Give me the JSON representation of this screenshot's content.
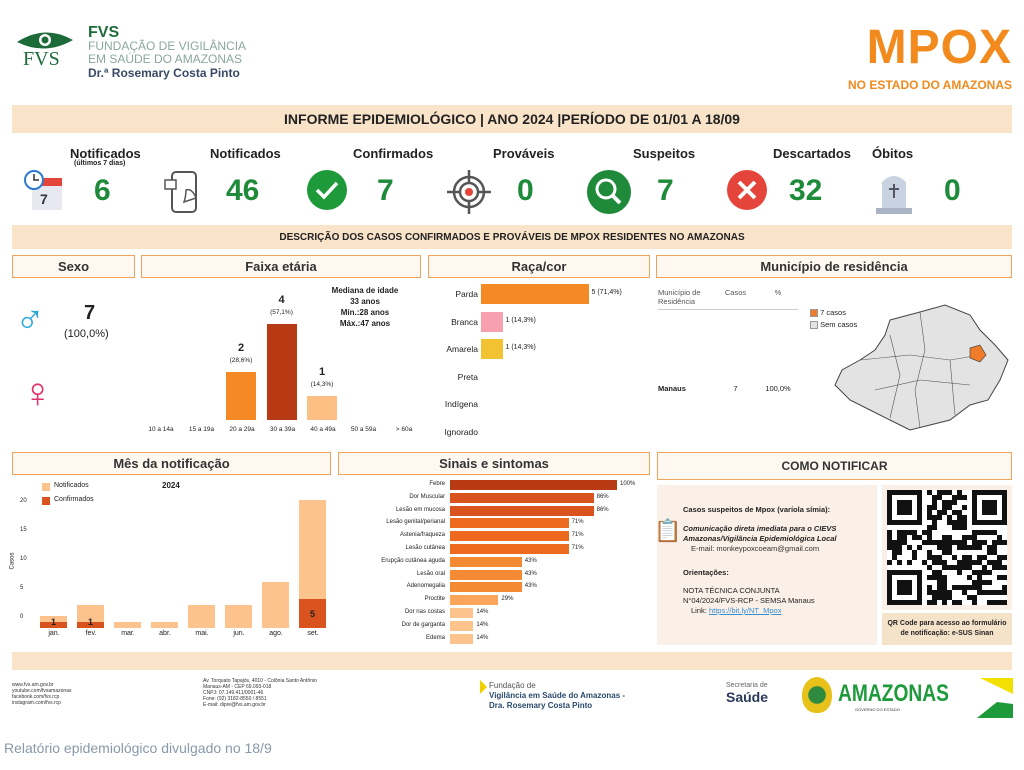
{
  "header": {
    "org_short": "FVS",
    "org_line1": "FUNDAÇÃO DE VIGILÂNCIA",
    "org_line2": "EM SAÚDE DO AMAZONAS",
    "org_line3": "Dr.ª Rosemary Costa Pinto",
    "logo_text": "FVS",
    "title": "MPOX",
    "subtitle": "NO ESTADO DO AMAZONAS"
  },
  "report_title": "INFORME EPIDEMIOLÓGICO | ANO 2024 |PERÍODO DE 01/01 A 18/09",
  "stats": [
    {
      "label": "Notificados",
      "sub": "(últimos 7 dias)",
      "value": "6",
      "icon": "calendar-clock-icon"
    },
    {
      "label": "Notificados",
      "value": "46",
      "icon": "phone-notification-icon"
    },
    {
      "label": "Confirmados",
      "value": "7",
      "icon": "check-circle-icon"
    },
    {
      "label": "Prováveis",
      "value": "0",
      "icon": "target-icon"
    },
    {
      "label": "Suspeitos",
      "value": "7",
      "icon": "magnifier-icon"
    },
    {
      "label": "Descartados",
      "value": "32",
      "icon": "x-circle-icon"
    },
    {
      "label": "Óbitos",
      "value": "0",
      "icon": "tombstone-icon"
    }
  ],
  "description": "DESCRIÇÃO DOS CASOS CONFIRMADOS E PROVÁVEIS DE MPOX RESIDENTES NO AMAZONAS",
  "sexo": {
    "title": "Sexo",
    "male_value": "7",
    "male_pct": "(100,0%)"
  },
  "faixa": {
    "title": "Faixa etária",
    "median_label": "Mediana de idade",
    "median": "33 anos",
    "min": "Mín.:28 anos",
    "max": "Máx.:47 anos"
  },
  "raca": {
    "title": "Raça/cor"
  },
  "municipio": {
    "title": "Município de residência",
    "col1": "Município de Residência",
    "col2": "Casos",
    "col3": "%",
    "rows": [
      {
        "name": "Manaus",
        "casos": "7",
        "pct": "100,0%"
      }
    ],
    "legend_cases": "7 casos",
    "legend_none": "Sem casos",
    "colors": {
      "cases": "#f07c2a",
      "none": "#e3e3e3"
    }
  },
  "mes": {
    "title": "Mês da notificação"
  },
  "sinais": {
    "title": "Sinais e sintomas"
  },
  "notificar": {
    "title": "COMO NOTIFICAR",
    "suspect": "Casos suspeitos de Mpox (varíola símia):",
    "comm1": "Comunicação direta imediata para o CIEVS",
    "comm2": "Amazonas/Vigilância Epidemiológica Local",
    "email": "E-mail: monkeypoxcoeam@gmail.com",
    "orient": "Orientações:",
    "nota1": "NOTA TÉCNICA CONJUNTA",
    "nota2": "N°04/2024/FVS-RCP - SEMSA Manaus",
    "link_label": "Link:",
    "link": "https://bit.ly/NT_Mpox",
    "qr_caption": "QR Code para acesso ao formulário de notificação: e-SUS Sinan"
  },
  "footer": {
    "web": [
      "www.fvs.am.gov.br",
      "youtube.com/fvsamazonas",
      "facebook.com/fvs.rcp",
      "instagram.com/fvs.rcp"
    ],
    "address": [
      "Av. Torquato Tapajós, 4010 - Colônia Santo Antônio",
      "Manaus-AM - CEP 69.093-018",
      "CNPJ: 07.149.411/0001-46",
      "Fone: (92) 3182-8550 / 8551",
      "E-mail: dipre@fvs.am.gov.br"
    ],
    "fvs1": "Fundação de",
    "fvs2": "Vigilância em Saúde do Amazonas -",
    "fvs3": "Dra. Rosemary Costa Pinto",
    "sec1": "Secretaria de",
    "sec2": "Saúde",
    "gov": "AMAZONAS",
    "gov_sub": "GOVERNO DO ESTADO"
  },
  "caption": "Relatório epidemiológico divulgado no 18/9",
  "chart_data": [
    {
      "type": "bar",
      "title": "Faixa etária",
      "categories": [
        "10 a 14a",
        "15 a 19a",
        "20 a 29a",
        "30 a 39a",
        "40 a 49a",
        "50 a 59a",
        "> 60a"
      ],
      "values": [
        0,
        0,
        2,
        4,
        1,
        0,
        0
      ],
      "labels": [
        "",
        "",
        "(28,6%)",
        "(57,1%)",
        "(14,3%)",
        "",
        ""
      ],
      "colors": [
        "#f58a24",
        "#f58a24",
        "#f58a24",
        "#b83a14",
        "#fcbf84",
        "#f58a24",
        "#f58a24"
      ]
    },
    {
      "type": "bar",
      "orientation": "horizontal",
      "title": "Raça/cor",
      "categories": [
        "Parda",
        "Branca",
        "Amarela",
        "Preta",
        "Indígena",
        "Ignorado"
      ],
      "values": [
        5,
        1,
        1,
        0,
        0,
        0
      ],
      "labels": [
        "5 (71,4%)",
        "1 (14,3%)",
        "1 (14,3%)",
        "",
        "",
        ""
      ],
      "colors": [
        "#f58a24",
        "#f7a1b0",
        "#f2c233",
        "#ccc",
        "#ccc",
        "#ccc"
      ]
    },
    {
      "type": "bar",
      "title": "2024",
      "ylabel": "Casos",
      "ylim": [
        0,
        23
      ],
      "yticks": [
        0,
        5,
        10,
        15,
        20
      ],
      "categories": [
        "jan.",
        "fev.",
        "mar.",
        "abr.",
        "mai.",
        "jun.",
        "ago.",
        "set."
      ],
      "series": [
        {
          "name": "Notificados",
          "values": [
            2,
            4,
            1,
            1,
            4,
            4,
            8,
            22
          ],
          "color": "#fcc48c"
        },
        {
          "name": "Confirmados",
          "values": [
            1,
            1,
            0,
            0,
            0,
            0,
            0,
            5
          ],
          "color": "#d9531e"
        }
      ],
      "legend": "top-left"
    },
    {
      "type": "bar",
      "orientation": "horizontal",
      "title": "Sinais e sintomas",
      "categories": [
        "Febre",
        "Dor Muscular",
        "Lesão em mucosa",
        "Lesão genital/perianal",
        "Astenia/fraqueza",
        "Lesão cutânea",
        "Erupção cutânea aguda",
        "Lesão oral",
        "Adenomegalia",
        "Proctite",
        "Dor nas costas",
        "Dor de garganta",
        "Edema"
      ],
      "values": [
        100,
        86,
        86,
        71,
        71,
        71,
        43,
        43,
        43,
        29,
        14,
        14,
        14
      ],
      "labels": [
        "100%",
        "86%",
        "86%",
        "71%",
        "71%",
        "71%",
        "43%",
        "43%",
        "43%",
        "29%",
        "14%",
        "14%",
        "14%"
      ]
    }
  ]
}
